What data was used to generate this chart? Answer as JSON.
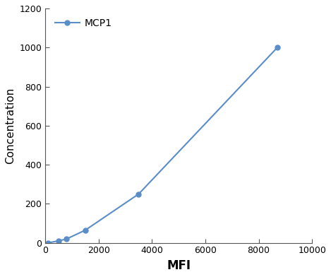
{
  "x": [
    100,
    500,
    800,
    1500,
    3500,
    8700
  ],
  "y": [
    0,
    10,
    20,
    65,
    250,
    1000
  ],
  "line_color": "#5b8dc8",
  "marker": "o",
  "marker_size": 5,
  "marker_facecolor": "#5b8dc8",
  "linewidth": 1.5,
  "xlabel": "MFI",
  "ylabel": "Concentration",
  "xlabel_fontsize": 12,
  "ylabel_fontsize": 11,
  "xlabel_fontweight": "bold",
  "ylabel_fontweight": "normal",
  "legend_label": "MCP1",
  "legend_fontsize": 10,
  "xlim": [
    0,
    10000
  ],
  "ylim": [
    0,
    1200
  ],
  "xticks": [
    0,
    2000,
    4000,
    6000,
    8000,
    10000
  ],
  "yticks": [
    0,
    200,
    400,
    600,
    800,
    1000,
    1200
  ],
  "tick_fontsize": 9,
  "background_color": "#ffffff",
  "spine_color": "#555555",
  "grid": false,
  "figsize": [
    4.69,
    3.92
  ],
  "dpi": 100
}
